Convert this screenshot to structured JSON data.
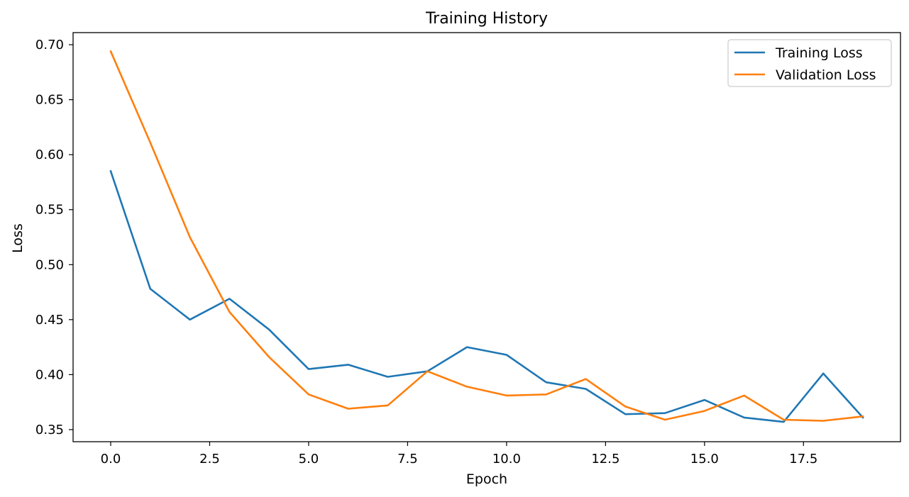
{
  "chart_data": {
    "type": "line",
    "title": "Training History",
    "xlabel": "Epoch",
    "ylabel": "Loss",
    "xlim": [
      -0.95,
      19.95
    ],
    "ylim": [
      0.339,
      0.711
    ],
    "xticks": [
      0.0,
      2.5,
      5.0,
      7.5,
      10.0,
      12.5,
      15.0,
      17.5
    ],
    "xtick_labels": [
      "0.0",
      "2.5",
      "5.0",
      "7.5",
      "10.0",
      "12.5",
      "15.0",
      "17.5"
    ],
    "yticks": [
      0.35,
      0.4,
      0.45,
      0.5,
      0.55,
      0.6,
      0.65,
      0.7
    ],
    "ytick_labels": [
      "0.35",
      "0.40",
      "0.45",
      "0.50",
      "0.55",
      "0.60",
      "0.65",
      "0.70"
    ],
    "grid": false,
    "legend_position": "top-right",
    "x": [
      0,
      1,
      2,
      3,
      4,
      5,
      6,
      7,
      8,
      9,
      10,
      11,
      12,
      13,
      14,
      15,
      16,
      17,
      18,
      19
    ],
    "series": [
      {
        "name": "Training Loss",
        "color": "#1f77b4",
        "values": [
          0.585,
          0.478,
          0.45,
          0.469,
          0.441,
          0.405,
          0.409,
          0.398,
          0.403,
          0.425,
          0.418,
          0.393,
          0.387,
          0.364,
          0.365,
          0.377,
          0.361,
          0.357,
          0.401,
          0.361
        ]
      },
      {
        "name": "Validation Loss",
        "color": "#ff7f0e",
        "values": [
          0.694,
          0.611,
          0.525,
          0.457,
          0.416,
          0.382,
          0.369,
          0.372,
          0.403,
          0.389,
          0.381,
          0.382,
          0.396,
          0.371,
          0.359,
          0.367,
          0.381,
          0.359,
          0.358,
          0.362
        ]
      }
    ]
  }
}
